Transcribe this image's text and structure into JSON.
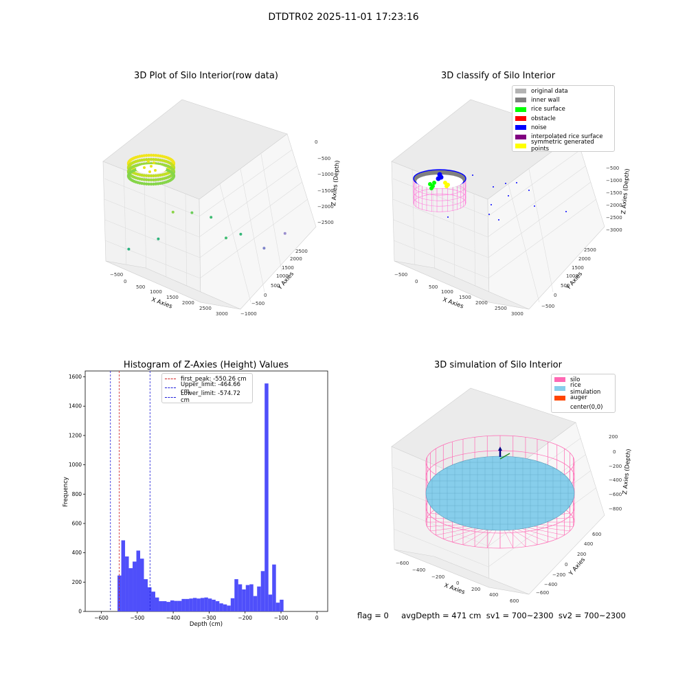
{
  "suptitle": "DTDTR02 2025-11-01 17:23:16",
  "footer": "flag = 0     avgDepth = 471 cm  sv1 = 700~2300  sv2 = 700~2300",
  "colors": {
    "hist_bar": "#4f4ffa",
    "peak_line": "#d22020",
    "limit_line": "#1a1ad8",
    "silo": "#ff69b4",
    "rice": "#87ceeb",
    "auger": "#ff4500",
    "pane": "#f2f2f2"
  },
  "chart_data": [
    {
      "type": "scatter",
      "subtype": "3d",
      "title": "3D Plot of Silo Interior(row data)",
      "xlabel": "X Axies",
      "ylabel": "Y Axies",
      "zlabel": "Z Axies (Depth)",
      "xticks": [
        "−500",
        "0",
        "500",
        "1000",
        "1500",
        "2000",
        "2500",
        "3000"
      ],
      "yticks": [
        "−1000",
        "−500",
        "0",
        "500",
        "1000",
        "1500",
        "2000",
        "2500"
      ],
      "zticks": [
        "0",
        "−500",
        "−1000",
        "−1500",
        "−2000",
        "−2500"
      ],
      "colormap": "viridis by depth",
      "points": [
        {
          "x": 2400,
          "y": 2200,
          "z": -2300
        },
        {
          "x": 2200,
          "y": 1600,
          "z": -2250
        },
        {
          "x": 1700,
          "y": 1500,
          "z": -1900
        },
        {
          "x": 1500,
          "y": 1200,
          "z": -1800
        },
        {
          "x": 1100,
          "y": 1300,
          "z": -1400
        },
        {
          "x": 700,
          "y": 1200,
          "z": -1300
        },
        {
          "x": 400,
          "y": 900,
          "z": -1100
        },
        {
          "x": 200,
          "y": 600,
          "z": -1700
        },
        {
          "x": -300,
          "y": 200,
          "z": -1800
        }
      ]
    },
    {
      "type": "scatter",
      "subtype": "3d",
      "title": "3D classify of Silo Interior",
      "xlabel": "X Axies",
      "ylabel": "Y Axies",
      "zlabel": "Z Axies (Depth)",
      "xticks": [
        "−500",
        "0",
        "500",
        "1000",
        "1500",
        "2000",
        "2500",
        "3000"
      ],
      "yticks": [
        "−500",
        "0",
        "500",
        "1000",
        "1500",
        "2000",
        "2500"
      ],
      "zticks": [
        "0",
        "−500",
        "−1000",
        "−1500",
        "−2000",
        "−2500",
        "−3000"
      ],
      "legend_position": "top-right",
      "legend": [
        {
          "label": "original data",
          "color": "#b3b3b3"
        },
        {
          "label": "inner wall",
          "color": "#808080"
        },
        {
          "label": "rice surface",
          "color": "#00ff00"
        },
        {
          "label": "obstacle",
          "color": "#ff0000"
        },
        {
          "label": "noise",
          "color": "#0000ff"
        },
        {
          "label": "interpolated rice surface",
          "color": "#800080"
        },
        {
          "label": "symmetric generated points",
          "color": "#ffff00"
        }
      ]
    },
    {
      "type": "bar",
      "subtype": "histogram",
      "title": "Histogram of Z-Axies (Height) Values",
      "xlabel": "Depth (cm)",
      "ylabel": "Frequency",
      "xlim": [
        -645,
        30
      ],
      "ylim": [
        0,
        1640
      ],
      "xticks": [
        -600,
        -500,
        -400,
        -300,
        -200,
        -100,
        0
      ],
      "yticks": [
        0,
        200,
        400,
        600,
        800,
        1000,
        1200,
        1400,
        1600
      ],
      "bin_edges_start": -555,
      "bin_width": 10.5,
      "values": [
        245,
        485,
        375,
        295,
        340,
        415,
        360,
        220,
        165,
        135,
        95,
        70,
        70,
        65,
        75,
        72,
        72,
        85,
        85,
        88,
        92,
        88,
        92,
        95,
        88,
        80,
        70,
        55,
        48,
        40,
        90,
        220,
        185,
        150,
        180,
        185,
        105,
        170,
        275,
        1555,
        115,
        320,
        60,
        80
      ],
      "vlines": [
        {
          "x": -550.26,
          "label": "first_peak: -550.26 cm",
          "color": "#d22020"
        },
        {
          "x": -464.66,
          "label": "Upper_limit: -464.66 cm",
          "color": "#1a1ad8"
        },
        {
          "x": -574.72,
          "label": "Lower_limit: -574.72 cm",
          "color": "#1a1ad8"
        }
      ]
    },
    {
      "type": "scatter",
      "subtype": "3d-surface",
      "title": "3D simulation of Silo Interior",
      "xlabel": "X Axies",
      "ylabel": "Y Axies",
      "zlabel": "Z Axies (Depth)",
      "xticks": [
        "−600",
        "−400",
        "−200",
        "0",
        "200",
        "400",
        "600"
      ],
      "yticks": [
        "−600",
        "−400",
        "−200",
        "0",
        "200",
        "400",
        "600"
      ],
      "zticks": [
        "200",
        "0",
        "−200",
        "−400",
        "−600",
        "−800"
      ],
      "legend_position": "top-right",
      "legend": [
        {
          "label": "silo",
          "color": "#ff69b4"
        },
        {
          "label": "rice simulation",
          "color": "#87ceeb"
        },
        {
          "label": "auger",
          "color": "#ff4500"
        },
        {
          "label": "center(0,0)",
          "color": ""
        }
      ]
    }
  ]
}
